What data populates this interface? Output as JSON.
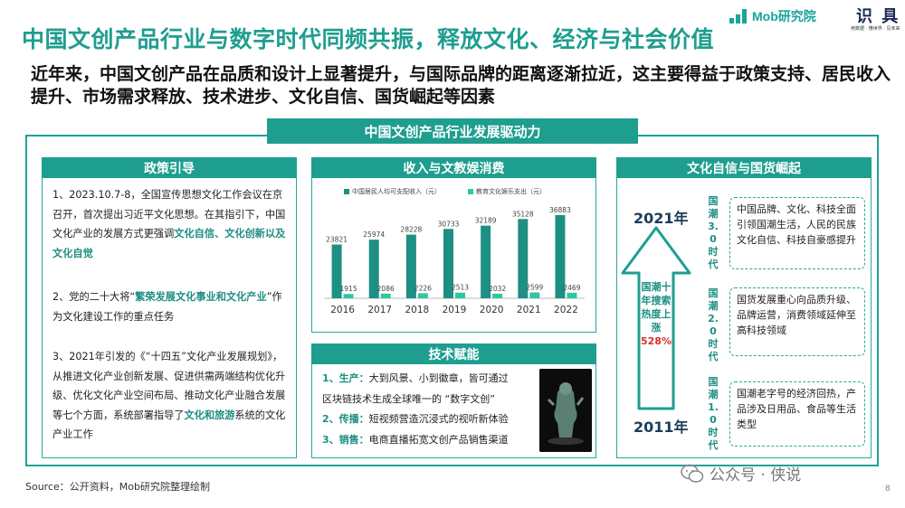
{
  "header": {
    "title": "中国文创产品行业与数字时代同频共振，释放文化、经济与社会价值",
    "subtitle": "近年来，中国文创产品在品质和设计上显著提升，与国际品牌的距离逐渐拉近，这主要得益于政策支持、居民收入提升、市场需求释放、技术进步、文化自信、国货崛起等因素"
  },
  "logo": {
    "brand": "Mob研究院",
    "partner": "识 具",
    "partner_sub": "用数据 · 懂世界 · 见未来"
  },
  "center_header": "中国文创产品行业发展驱动力",
  "policy": {
    "header": "政策引导",
    "p1_a": "1、2023.10.7-8，全国宣传思想文化工作会议在京召开，首次提出习近平文化思想。在其指引下，中国文化产业的发展方式更强调",
    "p1_hl": "文化自信、文化创新以及文化自觉",
    "p2_a": "2、党的二十大将“",
    "p2_hl": "繁荣发展文化事业和文化产业",
    "p2_b": "”作为文化建设工作的重点任务",
    "p3_a": "3、2021年引发的《“十四五”文化产业发展规划》，从推进文化产业创新发展、促进供需两端结构优化升级、优化文化产业空间布局、推动文化产业融合发展等七个方面，系统部署指导了",
    "p3_hl": "文化和旅游",
    "p3_b": "系统的文化产业工作"
  },
  "income": {
    "header": "收入与文教娱消费",
    "legend_income": "中国居民人均可支配收入（元）",
    "legend_spend": "教育文化娱乐支出（元）"
  },
  "chart_data": {
    "type": "bar",
    "categories": [
      "2016",
      "2017",
      "2018",
      "2019",
      "2020",
      "2021",
      "2022"
    ],
    "series": [
      {
        "name": "中国居民人均可支配收入（元）",
        "values": [
          23821,
          25974,
          28228,
          30733,
          32189,
          35128,
          36883
        ],
        "color": "#1e8f83"
      },
      {
        "name": "教育文化娱乐支出（元）",
        "values": [
          1915,
          2086,
          2226,
          2513,
          2032,
          2599,
          2469
        ],
        "color": "#2ec7a0"
      }
    ],
    "ylim": [
      0,
      40000
    ],
    "grid": false
  },
  "tech": {
    "header": "技术赋能",
    "items": [
      {
        "num": "1、生产：",
        "text": "大到风景、小到徽章，皆可通过"
      },
      {
        "num": "",
        "text": "区块链技术生成全球唯一的 “数字文创”"
      },
      {
        "num": "2、传播：",
        "text": "短视频营造沉浸式的视听新体验"
      },
      {
        "num": "3、销售：",
        "text": "电商直播拓宽文创产品销售渠道"
      }
    ]
  },
  "culture": {
    "header": "文化自信与国货崛起",
    "year_top": "2021年",
    "year_bottom": "2011年",
    "arrow_text": "国潮十年搜索热度上涨",
    "arrow_pct": "528%",
    "eras": [
      {
        "label": "国潮3.0时代",
        "text": "中国品牌、文化、科技全面引领国潮生活，人民的民族文化自信、科技自豪感提升"
      },
      {
        "label": "国潮2.0时代",
        "text": "国货发展重心向品质升级、品牌运营，消费领域延伸至高科技领域"
      },
      {
        "label": "国潮1.0时代",
        "text": "国潮老字号的经济回热，产品涉及日用品、食品等生活类型"
      }
    ]
  },
  "footer": {
    "source": "Source：公开资料，Mob研究院整理绘制",
    "wechat": "公众号 · 侠说",
    "page": "8"
  },
  "colors": {
    "accent": "#1e9e8f",
    "highlight": "#1e8f83",
    "percent": "#d6322c"
  }
}
